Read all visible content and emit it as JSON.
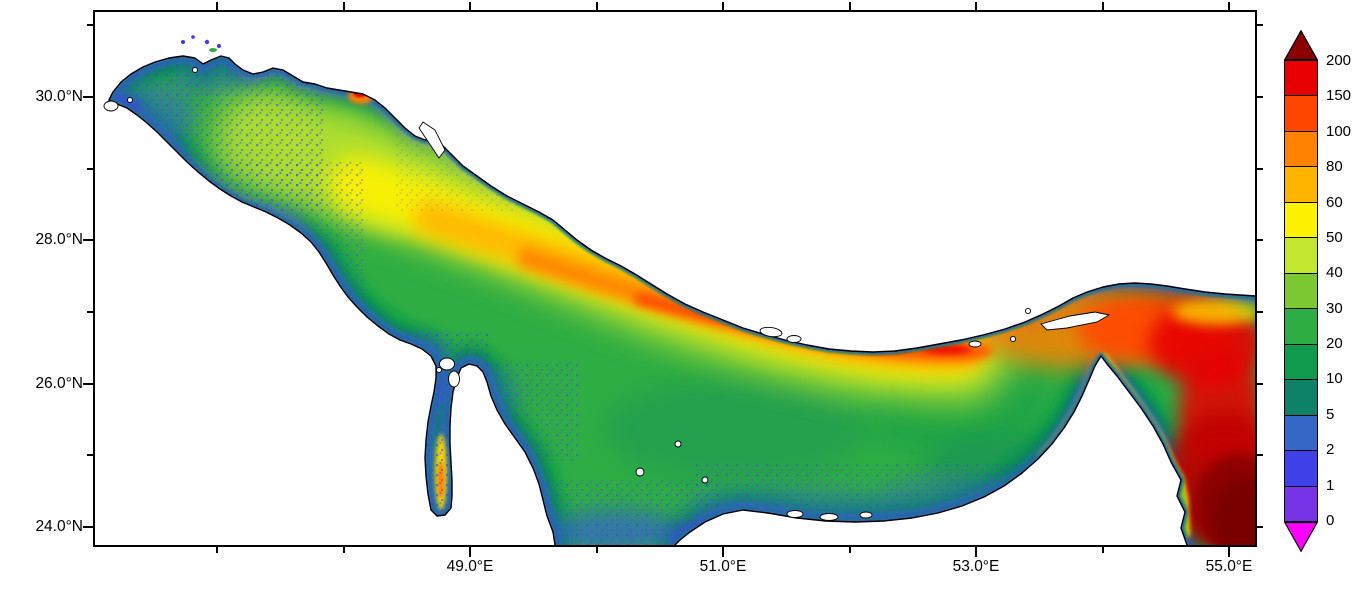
{
  "figure": {
    "background": "#FFFFFF",
    "frame_color": "#000000"
  },
  "axes": {
    "y_tick_labels": [
      "30.0°N",
      "28.0°N",
      "26.0°N",
      "24.0°N"
    ],
    "x_tick_labels": [
      "49.0°E",
      "51.0°E",
      "53.0°E",
      "55.0°E"
    ],
    "tick_note": "labeled major ticks every 2 degrees, minor ticks every 1 degree, ticks on all four sides pointing outward"
  },
  "chart_data": {
    "type": "heatmap",
    "title": "",
    "xlabel": "",
    "ylabel": "",
    "x_tick_labels": [
      "49.0°E",
      "51.0°E",
      "53.0°E",
      "55.0°E"
    ],
    "y_tick_labels": [
      "30.0°N",
      "28.0°N",
      "26.0°N",
      "24.0°N"
    ],
    "legend_position": "right",
    "grid": false,
    "colorbar": {
      "orientation": "vertical",
      "position": "right",
      "levels": [
        0,
        1,
        2,
        5,
        10,
        20,
        30,
        40,
        50,
        60,
        80,
        100,
        150,
        200
      ],
      "tick_labels_top_to_bottom": [
        "200",
        "150",
        "100",
        "80",
        "60",
        "50",
        "40",
        "30",
        "20",
        "10",
        "5",
        "2",
        "1",
        "0"
      ],
      "segment_colors_low_to_high": [
        "#7733E8",
        "#4040E8",
        "#3566C8",
        "#0E8268",
        "#0F9A4E",
        "#2EAD44",
        "#7CC832",
        "#C3E62E",
        "#FFF200",
        "#FFB400",
        "#FF8200",
        "#FF4600",
        "#E80000"
      ],
      "under_arrow_color": "#FF00FF",
      "over_arrow_color": "#8B0000"
    },
    "field_description": "Filled-contour field over a gulf-shaped sea region. Low values (0-10, violet/blue/teal) fringe every coastline and fill shallow embayments; mid values (20-60, greens to yellow) cover most of the basin; a 60-150 band (orange to red) runs along the central axis from northwest to east-southeast; highest values (150 to >200, red to dark red) occur in the narrow strait at the right and in the deep basin at the lower right corner.",
    "regions": [
      {
        "area": "coastal fringe along all shorelines",
        "value_range": [
          0,
          10
        ]
      },
      {
        "area": "northwest basin",
        "value_range": [
          20,
          50
        ]
      },
      {
        "area": "central axial band running WNW-ESE",
        "value_range": [
          50,
          100
        ]
      },
      {
        "area": "axial trough approaching the strait",
        "value_range": [
          100,
          150
        ]
      },
      {
        "area": "narrow embayment west of the peninsula (lower left)",
        "value_range": [
          0,
          10
        ]
      },
      {
        "area": "southern shelf along lower coast",
        "value_range": [
          5,
          30
        ]
      },
      {
        "area": "narrow strait at right",
        "value_range": [
          80,
          150
        ]
      },
      {
        "area": "deep basin at lower right corner",
        "value_range": [
          150,
          200
        ]
      },
      {
        "area": "isolated hot spot on upper-left coast",
        "value_range": [
          100,
          200
        ]
      }
    ],
    "value_extremes": {
      "min_shown": 0,
      "max_band_labeled": 200,
      "over_arrow_present": true,
      "under_arrow_present": true
    }
  }
}
